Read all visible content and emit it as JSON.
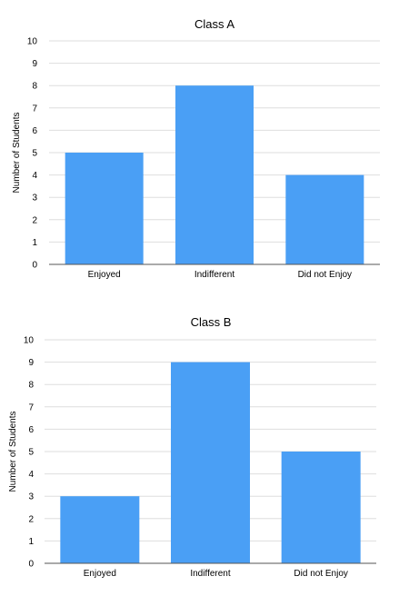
{
  "chart_data": [
    {
      "type": "bar",
      "title": "Class A",
      "ylabel": "Number of Students",
      "xlabel": "",
      "categories": [
        "Enjoyed",
        "Indifferent",
        "Did not Enjoy"
      ],
      "values": [
        5,
        8,
        4
      ],
      "ylim": [
        0,
        10
      ],
      "yticks": [
        "0",
        "1",
        "2",
        "3",
        "4",
        "5",
        "6",
        "7",
        "8",
        "9",
        "10"
      ],
      "grid": true,
      "bar_color": "#4a9ff5"
    },
    {
      "type": "bar",
      "title": "Class B",
      "ylabel": "Number of Students",
      "xlabel": "",
      "categories": [
        "Enjoyed",
        "Indifferent",
        "Did not Enjoy"
      ],
      "values": [
        3,
        9,
        5
      ],
      "ylim": [
        0,
        10
      ],
      "yticks": [
        "0",
        "1",
        "2",
        "3",
        "4",
        "5",
        "6",
        "7",
        "8",
        "9",
        "10"
      ],
      "grid": true,
      "bar_color": "#4a9ff5"
    }
  ]
}
